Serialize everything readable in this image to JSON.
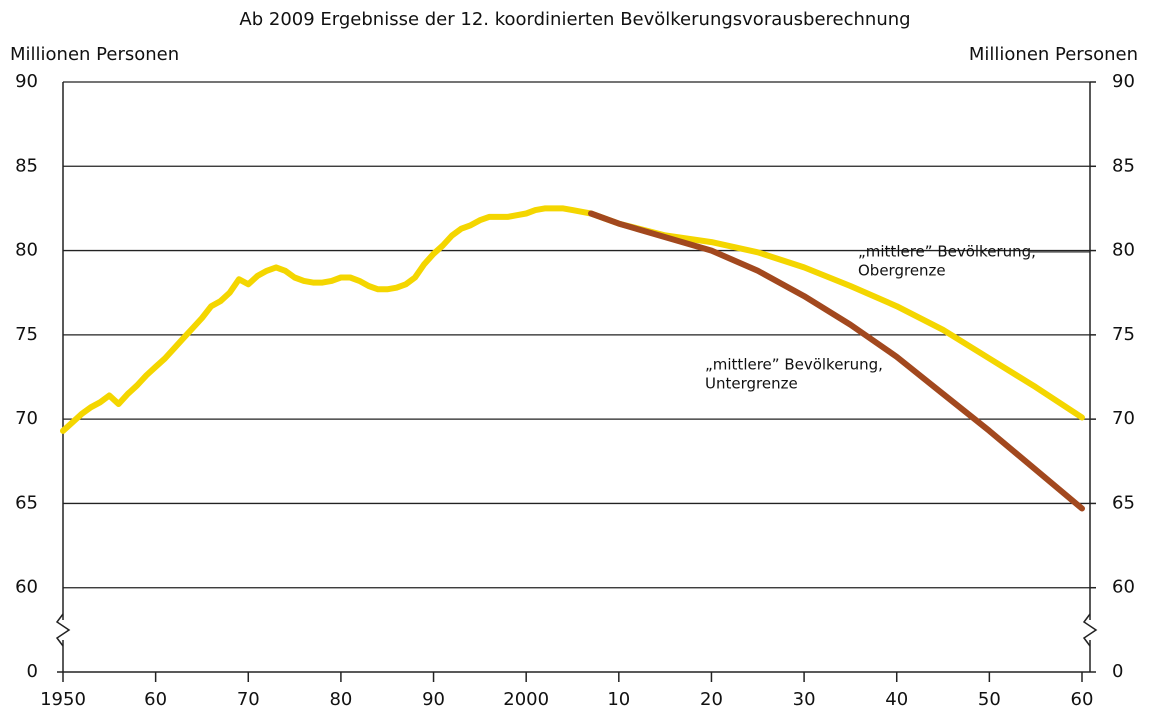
{
  "chart_data": {
    "type": "line",
    "title": "Ab 2009 Ergebnisse der 12. koordinierten Bevölkerungsvorausberechnung",
    "ylabel": "Millionen Personen",
    "y2label": "Millionen Personen",
    "xlim": [
      1950,
      2060
    ],
    "xticks": [
      1950,
      {
        "value": 1960,
        "label": "60"
      },
      {
        "value": 1970,
        "label": "70"
      },
      {
        "value": 1980,
        "label": "80"
      },
      {
        "value": 1990,
        "label": "90"
      },
      2000,
      {
        "value": 2010,
        "label": "10"
      },
      {
        "value": 2020,
        "label": "20"
      },
      {
        "value": 2030,
        "label": "30"
      },
      {
        "value": 2040,
        "label": "40"
      },
      {
        "value": 2050,
        "label": "50"
      },
      {
        "value": 2060,
        "label": "60"
      }
    ],
    "ylim": [
      0,
      90
    ],
    "y_break": [
      0,
      55
    ],
    "yticks": [
      0,
      60,
      65,
      70,
      75,
      80,
      85,
      90
    ],
    "y2lim": [
      0,
      90
    ],
    "y2ticks": [
      0,
      60,
      65,
      70,
      75,
      80,
      85,
      90
    ],
    "grid": true,
    "series": [
      {
        "color": "#f4d600",
        "x": [
          1950,
          1951,
          1952,
          1953,
          1954,
          1955,
          1956,
          1957,
          1958,
          1959,
          1960,
          1961,
          1962,
          1963,
          1964,
          1965,
          1966,
          1967,
          1968,
          1969,
          1970,
          1971,
          1972,
          1973,
          1974,
          1975,
          1976,
          1977,
          1978,
          1979,
          1980,
          1981,
          1982,
          1983,
          1984,
          1985,
          1986,
          1987,
          1988,
          1989,
          1990,
          1991,
          1992,
          1993,
          1994,
          1995,
          1996,
          1997,
          1998,
          1999,
          2000,
          2001,
          2002,
          2003,
          2004,
          2005,
          2006,
          2007,
          2010,
          2015,
          2020,
          2025,
          2030,
          2035,
          2040,
          2045,
          2050,
          2055,
          2060
        ],
        "values": [
          69.3,
          69.8,
          70.3,
          70.7,
          71.0,
          71.4,
          70.9,
          71.5,
          72.0,
          72.6,
          73.1,
          73.6,
          74.2,
          74.8,
          75.4,
          76.0,
          76.7,
          77.0,
          77.5,
          78.3,
          78.0,
          78.5,
          78.8,
          79.0,
          78.8,
          78.4,
          78.2,
          78.1,
          78.1,
          78.2,
          78.4,
          78.4,
          78.2,
          77.9,
          77.7,
          77.7,
          77.8,
          78.0,
          78.4,
          79.2,
          79.8,
          80.3,
          80.9,
          81.3,
          81.5,
          81.8,
          82.0,
          82.0,
          82.0,
          82.1,
          82.2,
          82.4,
          82.5,
          82.5,
          82.5,
          82.4,
          82.3,
          82.2,
          81.6,
          80.9,
          80.5,
          79.9,
          79.0,
          77.9,
          76.7,
          75.3,
          73.6,
          71.9,
          70.1
        ]
      },
      {
        "color": "#a2481e",
        "x": [
          2007,
          2010,
          2015,
          2020,
          2025,
          2030,
          2035,
          2040,
          2045,
          2050,
          2055,
          2060
        ],
        "values": [
          82.2,
          81.6,
          80.8,
          80.0,
          78.8,
          77.3,
          75.6,
          73.7,
          71.5,
          69.3,
          67.0,
          64.7
        ]
      }
    ],
    "annotations": [
      {
        "lines": [
          "„mittlere” Bevölkerung,",
          "Obergrenze"
        ]
      },
      {
        "lines": [
          "„mittlere” Bevölkerung,",
          "Untergrenze"
        ]
      }
    ]
  }
}
